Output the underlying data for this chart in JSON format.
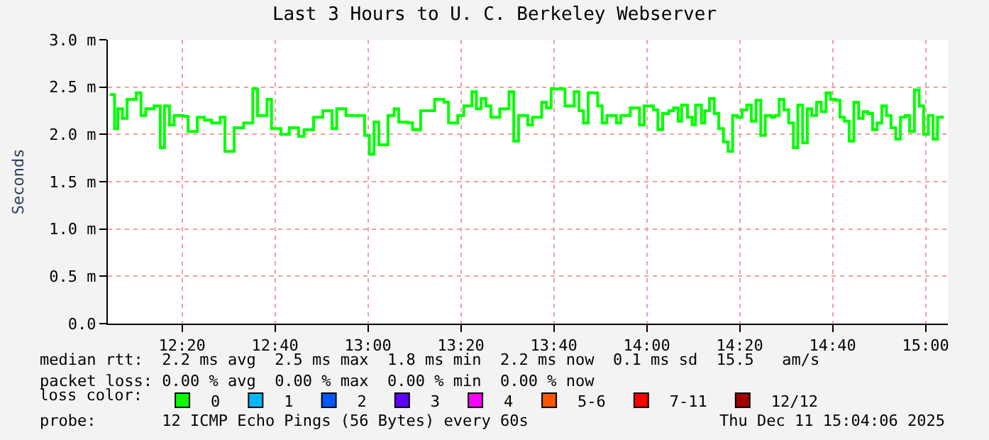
{
  "chart_data": {
    "type": "step",
    "title": "Last 3 Hours to U. C. Berkeley Webserver",
    "ylabel": "Seconds",
    "xlim": [
      12.067,
      15.08
    ],
    "xticks": [
      {
        "value": 12.3333,
        "label": "12:20"
      },
      {
        "value": 12.6667,
        "label": "12:40"
      },
      {
        "value": 13.0,
        "label": "13:00"
      },
      {
        "value": 13.3333,
        "label": "13:20"
      },
      {
        "value": 13.6667,
        "label": "13:40"
      },
      {
        "value": 14.0,
        "label": "14:00"
      },
      {
        "value": 14.3333,
        "label": "14:20"
      },
      {
        "value": 14.6667,
        "label": "14:40"
      },
      {
        "value": 15.0,
        "label": "15:00"
      }
    ],
    "ylim": [
      0,
      3.0
    ],
    "yticks": [
      {
        "value": 0,
        "label": "0.0"
      },
      {
        "value": 0.5,
        "label": "0.5 m"
      },
      {
        "value": 1.0,
        "label": "1.0 m"
      },
      {
        "value": 1.5,
        "label": "1.5 m"
      },
      {
        "value": 2.0,
        "label": "2.0 m"
      },
      {
        "value": 2.5,
        "label": "2.5 m"
      },
      {
        "value": 3.0,
        "label": "3.0 m"
      }
    ],
    "grid": true,
    "legend": "bottom",
    "legend_title": "loss color:",
    "series": [
      {
        "color": "#00ff00",
        "x": [
          12.074,
          12.091,
          12.103,
          12.119,
          12.136,
          12.169,
          12.186,
          12.203,
          12.233,
          12.255,
          12.27,
          12.288,
          12.305,
          12.338,
          12.355,
          12.388,
          12.414,
          12.439,
          12.47,
          12.487,
          12.52,
          12.554,
          12.587,
          12.604,
          12.638,
          12.654,
          12.688,
          12.718,
          12.751,
          12.771,
          12.805,
          12.838,
          12.871,
          12.888,
          12.921,
          12.955,
          12.988,
          13.005,
          13.022,
          13.039,
          13.072,
          13.094,
          13.11,
          13.144,
          13.16,
          13.189,
          13.211,
          13.239,
          13.272,
          13.289,
          13.322,
          13.344,
          13.373,
          13.389,
          13.406,
          13.423,
          13.441,
          13.473,
          13.506,
          13.523,
          13.54,
          13.573,
          13.59,
          13.623,
          13.64,
          13.657,
          13.69,
          13.707,
          13.74,
          13.757,
          13.773,
          13.79,
          13.824,
          13.84,
          13.857,
          13.891,
          13.907,
          13.941,
          13.974,
          13.991,
          14.024,
          14.04,
          14.057,
          14.079,
          14.096,
          14.113,
          14.125,
          14.146,
          14.163,
          14.175,
          14.196,
          14.208,
          14.225,
          14.242,
          14.258,
          14.275,
          14.292,
          14.308,
          14.325,
          14.342,
          14.359,
          14.375,
          14.392,
          14.409,
          14.425,
          14.447,
          14.459,
          14.475,
          14.492,
          14.509,
          14.526,
          14.542,
          14.559,
          14.576,
          14.592,
          14.609,
          14.626,
          14.643,
          14.659,
          14.676,
          14.693,
          14.709,
          14.726,
          14.743,
          14.76,
          14.776,
          14.793,
          14.81,
          14.826,
          14.843,
          14.86,
          14.876,
          14.893,
          14.91,
          14.927,
          14.943,
          14.96,
          14.977,
          14.993,
          15.01,
          15.027,
          15.043,
          15.06
        ],
        "values": [
          2.42,
          2.06,
          2.27,
          2.17,
          2.37,
          2.44,
          2.2,
          2.27,
          2.3,
          1.86,
          2.3,
          2.1,
          2.2,
          2.19,
          2.03,
          2.18,
          2.15,
          2.12,
          2.18,
          1.82,
          2.07,
          2.12,
          2.48,
          2.2,
          2.37,
          2.06,
          2.0,
          2.07,
          1.98,
          2.05,
          2.18,
          2.25,
          2.06,
          2.27,
          2.2,
          2.2,
          1.99,
          1.79,
          2.13,
          1.89,
          2.2,
          2.27,
          2.13,
          2.12,
          2.05,
          2.25,
          2.25,
          2.37,
          2.34,
          2.12,
          2.2,
          2.3,
          2.45,
          2.27,
          2.38,
          2.3,
          2.18,
          2.27,
          2.45,
          1.93,
          2.2,
          2.1,
          2.18,
          2.34,
          2.28,
          2.48,
          2.48,
          2.3,
          2.45,
          2.25,
          2.12,
          2.44,
          2.3,
          2.12,
          2.2,
          2.12,
          2.2,
          2.28,
          2.1,
          2.3,
          2.26,
          2.05,
          2.22,
          2.25,
          2.28,
          2.14,
          2.31,
          2.18,
          2.1,
          2.31,
          2.12,
          2.25,
          2.38,
          2.22,
          2.06,
          1.92,
          1.82,
          2.2,
          2.18,
          2.26,
          2.31,
          2.14,
          2.36,
          1.99,
          2.2,
          2.18,
          2.2,
          2.37,
          2.26,
          2.12,
          1.86,
          2.31,
          1.91,
          2.27,
          2.2,
          2.34,
          2.24,
          2.44,
          2.37,
          2.36,
          2.18,
          2.14,
          1.93,
          2.34,
          2.17,
          2.24,
          2.22,
          2.05,
          2.12,
          2.3,
          2.2,
          2.07,
          1.95,
          2.18,
          2.2,
          2.03,
          2.47,
          2.3,
          2.0,
          2.2,
          1.95,
          2.18,
          2.2
        ]
      },
      {
        "name": "0",
        "color": "#00ff00"
      },
      {
        "name": "1",
        "color": "#00b8ff"
      },
      {
        "name": "2",
        "color": "#0059ff"
      },
      {
        "name": "3",
        "color": "#5e00ff"
      },
      {
        "name": "4",
        "color": "#ff00fe"
      },
      {
        "name": "5-6",
        "color": "#ff5500"
      },
      {
        "name": "7-11",
        "color": "#ff0000"
      },
      {
        "name": "12/12",
        "color": "#a10000"
      }
    ],
    "annotations": [
      "median rtt:  2.2 ms avg  2.5 ms max  1.8 ms min  2.2 ms now  0.1 ms sd  15.5   am/s",
      "packet loss: 0.00 % avg  0.00 % max  0.00 % min  0.00 % now",
      "probe:       12 ICMP Echo Pings (56 Bytes) every 60s",
      "Thu Dec 11 15:04:06 2025"
    ]
  }
}
